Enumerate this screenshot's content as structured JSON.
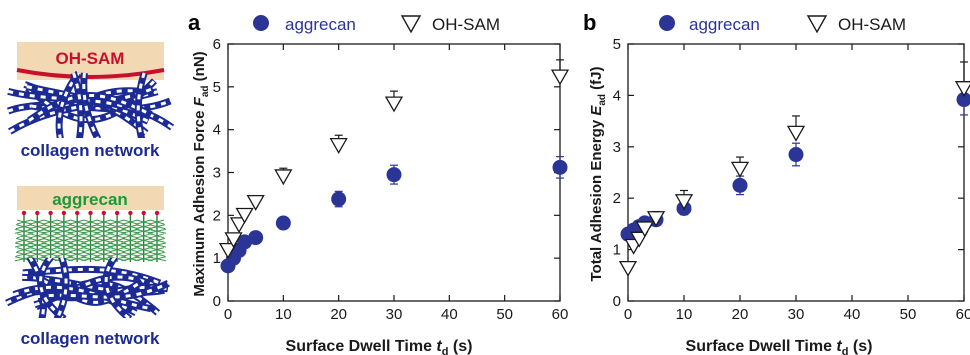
{
  "schematic": {
    "top": {
      "surface_label": "OH-SAM",
      "network_label": "collagen network"
    },
    "bottom": {
      "surface_label": "aggrecan",
      "network_label": "collagen network"
    }
  },
  "colors": {
    "aggrecan": "#2b3596",
    "ohsam_stroke": "#1a1a1a",
    "network": "#1c2a93",
    "ohsam_label": "#c8102e",
    "aggrecan_label": "#1a9a3a",
    "surface_fill": "#f2d9b3",
    "aggrecan_brush": "#3a9a4a"
  },
  "chart_data": [
    {
      "panel_label": "a",
      "type": "scatter",
      "xlabel_main": "Surface Dwell Time ",
      "xlabel_italic": "t",
      "xlabel_sub": "d",
      "xlabel_unit": " (s)",
      "ylabel_main": "Maximum Adhesion Force ",
      "ylabel_italic": "F",
      "ylabel_sub": "ad",
      "ylabel_unit": " (nN)",
      "xlim": [
        0,
        60
      ],
      "ylim": [
        0,
        6
      ],
      "xticks": [
        0,
        10,
        20,
        30,
        40,
        50,
        60
      ],
      "yticks": [
        0,
        1,
        2,
        3,
        4,
        5,
        6
      ],
      "legend_position": "top",
      "series": [
        {
          "name": "aggrecan",
          "marker": "circle",
          "x": [
            0,
            1,
            2,
            3,
            5,
            10,
            20,
            30,
            60
          ],
          "y": [
            0.82,
            1.0,
            1.18,
            1.38,
            1.48,
            1.82,
            2.38,
            2.95,
            3.12
          ],
          "err": [
            0.06,
            0.08,
            0.1,
            0.1,
            0.1,
            0.1,
            0.18,
            0.22,
            0.25
          ]
        },
        {
          "name": "OH-SAM",
          "marker": "triangle-down",
          "x": [
            0,
            1,
            2,
            3,
            5,
            10,
            20,
            30,
            60
          ],
          "y": [
            1.2,
            1.45,
            1.8,
            2.02,
            2.32,
            2.92,
            3.65,
            4.62,
            5.25
          ],
          "err": [
            0.1,
            0.1,
            0.12,
            0.12,
            0.12,
            0.18,
            0.22,
            0.28,
            0.38
          ]
        }
      ]
    },
    {
      "panel_label": "b",
      "type": "scatter",
      "xlabel_main": "Surface Dwell Time ",
      "xlabel_italic": "t",
      "xlabel_sub": "d",
      "xlabel_unit": " (s)",
      "ylabel_main": "Total Adhesion Energy ",
      "ylabel_italic": "E",
      "ylabel_sub": "ad",
      "ylabel_unit": " (fJ)",
      "xlim": [
        0,
        60
      ],
      "ylim": [
        0,
        5
      ],
      "xticks": [
        0,
        10,
        20,
        30,
        40,
        50,
        60
      ],
      "yticks": [
        0,
        1,
        2,
        3,
        4,
        5
      ],
      "legend_position": "top",
      "series": [
        {
          "name": "aggrecan",
          "marker": "circle",
          "x": [
            0,
            1,
            2,
            3,
            5,
            10,
            20,
            30,
            60
          ],
          "y": [
            1.3,
            1.38,
            1.45,
            1.52,
            1.58,
            1.8,
            2.25,
            2.85,
            3.92
          ],
          "err": [
            0.05,
            0.08,
            0.1,
            0.1,
            0.1,
            0.12,
            0.18,
            0.22,
            0.3
          ]
        },
        {
          "name": "OH-SAM",
          "marker": "triangle-down",
          "x": [
            0,
            1,
            2,
            3,
            5,
            10,
            20,
            30,
            60
          ],
          "y": [
            0.65,
            1.08,
            1.22,
            1.42,
            1.62,
            1.95,
            2.58,
            3.28,
            4.15
          ],
          "err": [
            0.05,
            0.1,
            0.12,
            0.12,
            0.12,
            0.2,
            0.22,
            0.32,
            0.5
          ]
        }
      ]
    }
  ]
}
